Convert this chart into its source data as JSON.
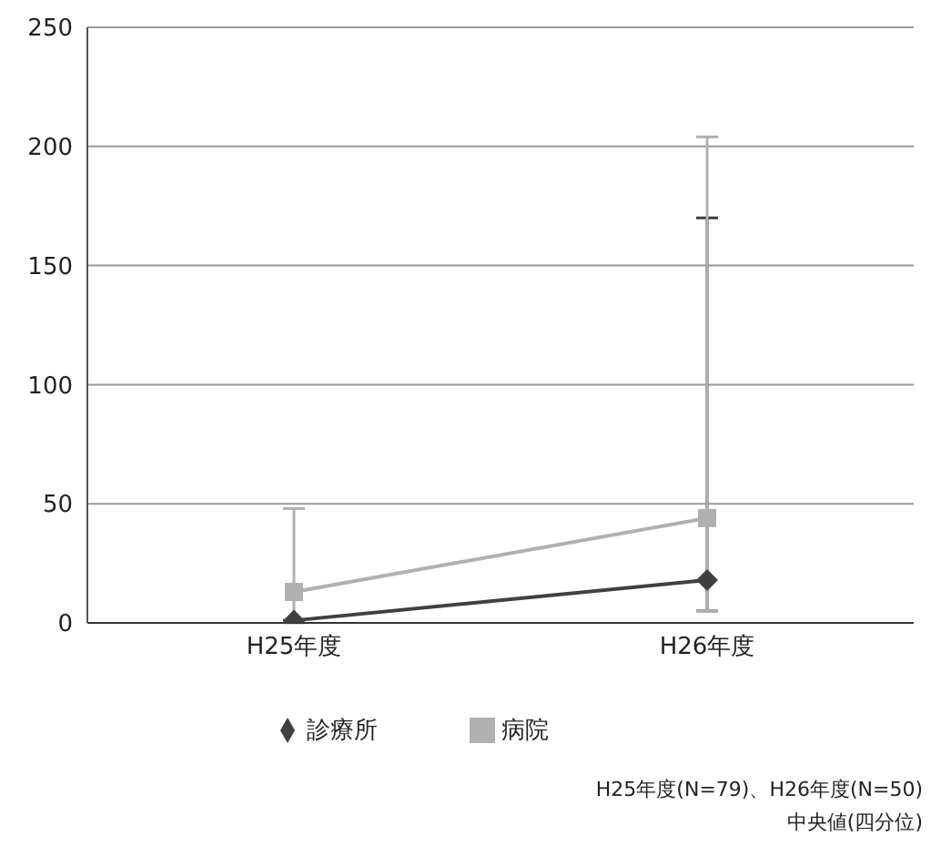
{
  "chart_data": {
    "type": "line",
    "categories": [
      "H25年度",
      "H26年度"
    ],
    "series": [
      {
        "name": "診療所",
        "color": "#404040",
        "marker": "diamond",
        "values": [
          1,
          18
        ],
        "errors": [
          null,
          [
            5,
            170
          ]
        ]
      },
      {
        "name": "病院",
        "color": "#b0b0b0",
        "marker": "square",
        "values": [
          13,
          44
        ],
        "errors": [
          [
            0,
            48
          ],
          [
            5,
            204
          ]
        ]
      }
    ],
    "ylim": [
      0,
      250
    ],
    "yticks": [
      0,
      50,
      100,
      150,
      200,
      250
    ],
    "grid": "y",
    "legend": "bottom",
    "annotations": [
      "H25年度(N=79)、H26年度(N=50)",
      "中央値(四分位)"
    ]
  }
}
